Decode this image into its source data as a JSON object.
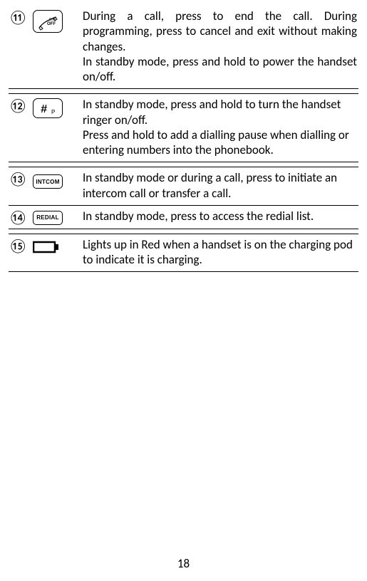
{
  "rows": [
    {
      "num": "⑪",
      "desc": "During a call, press to end the call. During programming, press to cancel and exit without making changes.\nIn standby mode, press and hold to power the handset on/off."
    },
    {
      "num": "⑫",
      "desc": "In standby mode, press and hold to turn the handset ringer on/off.\nPress and hold to add a dialling pause when dialling or entering numbers into the phonebook."
    },
    {
      "num": "⑬",
      "desc": "In standby mode or during a call, press to initiate an intercom call or transfer a call."
    },
    {
      "num": "⑭",
      "desc": "In standby mode, press to access the redial list."
    },
    {
      "num": "⑮",
      "desc": "Lights up in Red when a handset is on the charging pod to indicate it is charging."
    }
  ],
  "icon_labels": {
    "end_top": "End",
    "end_bottom": "OFF",
    "hash": "#",
    "hash_sub": "P",
    "intcom": "INTCOM",
    "redial": "REDIAL"
  },
  "page_number": "18",
  "colors": {
    "text": "#000000",
    "bg": "#ffffff"
  }
}
